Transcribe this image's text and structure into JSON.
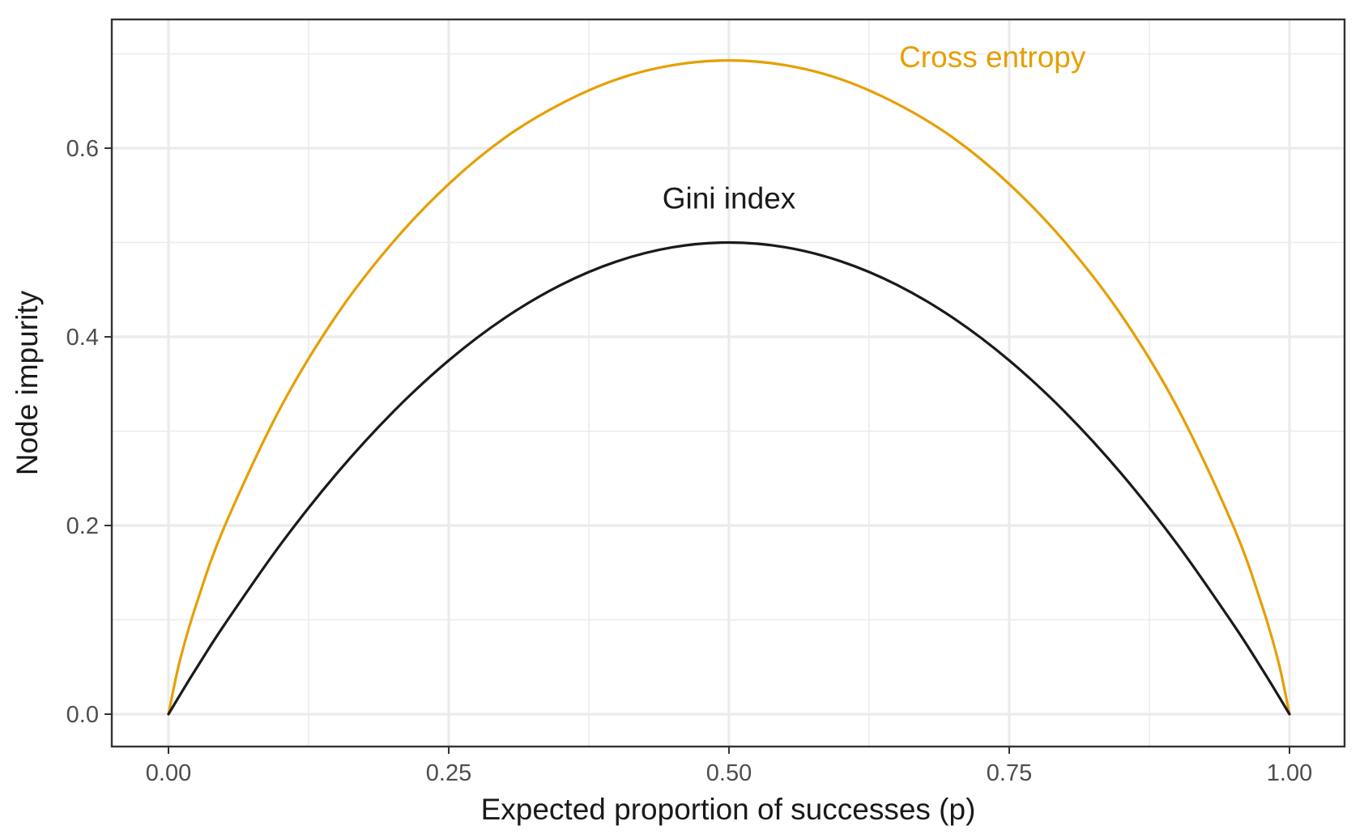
{
  "chart_data": {
    "type": "line",
    "title": "",
    "xlabel": "Expected proportion of successes (p)",
    "ylabel": "Node impurity",
    "xlim": [
      0,
      1
    ],
    "ylim": [
      0,
      0.7
    ],
    "x_ticks": [
      0,
      0.25,
      0.5,
      0.75,
      1
    ],
    "x_tick_labels": [
      "0.00",
      "0.25",
      "0.50",
      "0.75",
      "1.00"
    ],
    "y_ticks": [
      0,
      0.2,
      0.4,
      0.6
    ],
    "y_tick_labels": [
      "0.0",
      "0.2",
      "0.4",
      "0.6"
    ],
    "grid": true,
    "legend": "none",
    "x": [
      0,
      0.01,
      0.025,
      0.05,
      0.1,
      0.15,
      0.2,
      0.25,
      0.3,
      0.35,
      0.4,
      0.45,
      0.5,
      0.55,
      0.6,
      0.65,
      0.7,
      0.75,
      0.8,
      0.85,
      0.9,
      0.95,
      0.975,
      0.99,
      1
    ],
    "series": [
      {
        "name": "Cross entropy",
        "color": "#E69F00",
        "values": [
          0,
          0.056,
          0.117,
          0.199,
          0.325,
          0.423,
          0.5,
          0.562,
          0.611,
          0.647,
          0.673,
          0.688,
          0.693,
          0.688,
          0.673,
          0.647,
          0.611,
          0.562,
          0.5,
          0.423,
          0.325,
          0.199,
          0.117,
          0.056,
          0
        ]
      },
      {
        "name": "Gini index",
        "color": "#1a1a1a",
        "values": [
          0,
          0.0198,
          0.0488,
          0.095,
          0.18,
          0.255,
          0.32,
          0.375,
          0.42,
          0.455,
          0.48,
          0.495,
          0.5,
          0.495,
          0.48,
          0.455,
          0.42,
          0.375,
          0.32,
          0.255,
          0.18,
          0.095,
          0.0488,
          0.0198,
          0
        ]
      }
    ],
    "annotations": [
      {
        "text": "Cross entropy",
        "x": 0.735,
        "y": 0.697,
        "color": "#E69F00"
      },
      {
        "text": "Gini index",
        "x": 0.5,
        "y": 0.547,
        "color": "#1a1a1a"
      }
    ]
  }
}
